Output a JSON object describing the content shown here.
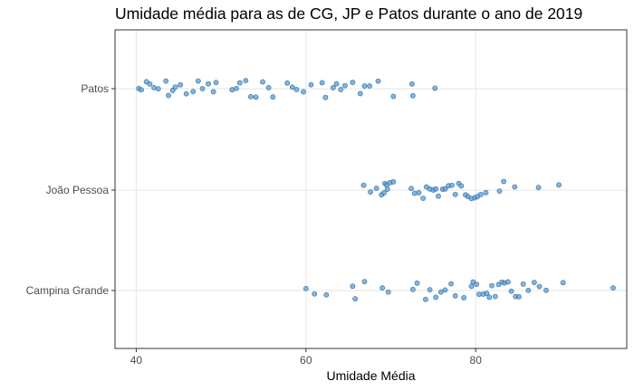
{
  "chart_data": {
    "type": "scatter",
    "title": "Umidade média para as de CG, JP e Patos durante o ano de 2019",
    "xlabel": "Umidade Média",
    "ylabel": "",
    "xlim": [
      37.5,
      97.8
    ],
    "xticks": [
      40,
      60,
      80
    ],
    "categories": [
      "Campina Grande",
      "João Pessoa",
      "Patos"
    ],
    "grid": true,
    "legend": "none",
    "point_color": "#5b9bd5",
    "series": [
      {
        "category": "Patos",
        "values": [
          40.3,
          40.6,
          41.2,
          41.6,
          42.1,
          42.6,
          43.5,
          43.8,
          44.3,
          44.6,
          45.2,
          45.9,
          46.7,
          47.3,
          47.8,
          48.5,
          49.1,
          49.4,
          51.3,
          51.8,
          52.2,
          52.9,
          53.5,
          54.1,
          54.9,
          55.6,
          56.1,
          57.8,
          58.4,
          58.9,
          59.7,
          60.6,
          61.9,
          62.3,
          63.2,
          63.6,
          64.1,
          64.6,
          65.5,
          66.4,
          66.9,
          67.5,
          68.5,
          70.3,
          72.5,
          72.6,
          75.2
        ]
      },
      {
        "category": "João Pessoa",
        "values": [
          66.8,
          67.6,
          68.3,
          68.9,
          69.2,
          69.3,
          69.5,
          69.6,
          69.9,
          70.3,
          72.4,
          72.8,
          73.3,
          73.8,
          74.2,
          74.6,
          75.0,
          75.3,
          75.6,
          76.1,
          76.4,
          76.8,
          77.2,
          77.6,
          78.0,
          78.3,
          78.8,
          79.1,
          79.5,
          79.9,
          80.2,
          80.6,
          81.2,
          82.8,
          83.3,
          84.6,
          87.4,
          89.8
        ]
      },
      {
        "category": "Campina Grande",
        "values": [
          60.0,
          61.0,
          62.4,
          65.5,
          65.8,
          66.9,
          69.0,
          69.7,
          72.6,
          73.1,
          74.1,
          74.6,
          75.3,
          75.9,
          76.4,
          77.1,
          77.6,
          78.6,
          79.5,
          79.7,
          80.1,
          80.4,
          80.9,
          81.3,
          81.6,
          81.9,
          82.3,
          82.7,
          83.1,
          83.4,
          83.8,
          84.2,
          84.7,
          85.1,
          85.6,
          86.2,
          86.9,
          87.5,
          88.3,
          90.3,
          96.2
        ]
      }
    ]
  }
}
